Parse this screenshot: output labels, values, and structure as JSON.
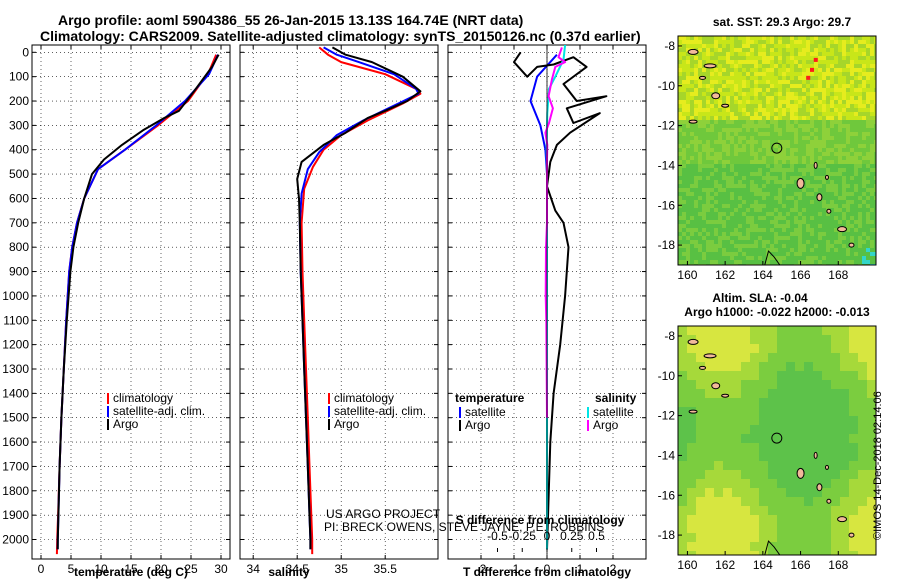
{
  "header": {
    "line1": "Argo profile: aoml 5904386_55 26-Jan-2015 13.13S 164.74E (NRT data)",
    "line2": "Climatology: CARS2009. Satellite-adjusted climatology: synTS_20150126.nc (0.37d earlier)"
  },
  "credits": {
    "line1": "US ARGO PROJECT",
    "line2": "PI: BRECK OWENS, STEVE JAYNE, P.E. ROBBINS"
  },
  "sidebar_note": "©IMOS 14-Dec-2018 02:14:06",
  "colors": {
    "climatology": "#ff0000",
    "satellite": "#0000ff",
    "argo": "#000000",
    "sat_salinity": "#00e5e5",
    "argo_salinity": "#ff00ff"
  },
  "chart_data": [
    {
      "id": "temperature",
      "type": "line",
      "xlabel": "temperature (deg C)",
      "ylabel": "",
      "xlim": [
        -1.5,
        31.5
      ],
      "ylim": [
        2080,
        -30
      ],
      "xticks": [
        0,
        5,
        10,
        15,
        20,
        25,
        30
      ],
      "yticks": [
        0,
        100,
        200,
        300,
        400,
        500,
        600,
        700,
        800,
        900,
        1000,
        1100,
        1200,
        1300,
        1400,
        1500,
        1600,
        1700,
        1800,
        1900,
        2000
      ],
      "legend": [
        "climatology",
        "satellite-adj. clim.",
        "Argo"
      ],
      "series": [
        {
          "name": "climatology",
          "color": "#ff0000",
          "points": [
            [
              29.2,
              10
            ],
            [
              28,
              80
            ],
            [
              24.5,
              200
            ],
            [
              19.5,
              300
            ],
            [
              14,
              400
            ],
            [
              9.5,
              480
            ],
            [
              7.2,
              600
            ],
            [
              6,
              700
            ],
            [
              5.2,
              800
            ],
            [
              4.7,
              900
            ],
            [
              4.2,
              1100
            ],
            [
              3.8,
              1300
            ],
            [
              3.4,
              1500
            ],
            [
              3.1,
              1700
            ],
            [
              2.85,
              1900
            ],
            [
              2.7,
              2000
            ],
            [
              2.65,
              2060
            ]
          ]
        },
        {
          "name": "satellite-adj. clim.",
          "color": "#0000ff",
          "points": [
            [
              29.5,
              10
            ],
            [
              28,
              90
            ],
            [
              24,
              200
            ],
            [
              19.2,
              300
            ],
            [
              14,
              400
            ],
            [
              9.5,
              480
            ],
            [
              7.2,
              600
            ],
            [
              6,
              700
            ],
            [
              5.2,
              800
            ],
            [
              4.7,
              900
            ],
            [
              4.2,
              1100
            ],
            [
              3.8,
              1300
            ],
            [
              3.4,
              1500
            ],
            [
              3.1,
              1700
            ],
            [
              2.9,
              1900
            ],
            [
              2.8,
              2000
            ],
            [
              2.78,
              2040
            ]
          ]
        },
        {
          "name": "Argo",
          "color": "#000000",
          "points": [
            [
              29.6,
              10
            ],
            [
              28.5,
              60
            ],
            [
              25.5,
              160
            ],
            [
              23,
              240
            ],
            [
              20.5,
              270
            ],
            [
              17,
              320
            ],
            [
              13.5,
              380
            ],
            [
              10.5,
              440
            ],
            [
              8.5,
              500
            ],
            [
              7.2,
              600
            ],
            [
              6.2,
              700
            ],
            [
              5.4,
              800
            ],
            [
              4.9,
              900
            ],
            [
              4.3,
              1100
            ],
            [
              3.8,
              1300
            ],
            [
              3.4,
              1500
            ],
            [
              3.1,
              1700
            ],
            [
              2.9,
              1900
            ],
            [
              2.8,
              2000
            ],
            [
              2.78,
              2040
            ]
          ]
        }
      ]
    },
    {
      "id": "salinity",
      "type": "line",
      "xlabel": "salinity",
      "xlim": [
        33.85,
        36.1
      ],
      "ylim": [
        2080,
        -30
      ],
      "xticks": [
        34,
        34.5,
        35,
        35.5
      ],
      "xticklabels": [
        "34",
        "34.5",
        "35",
        "35.5"
      ],
      "legend": [
        "climatology",
        "satellite-adj. clim.",
        "Argo"
      ],
      "series": [
        {
          "name": "climatology",
          "color": "#ff0000",
          "points": [
            [
              34.75,
              -20
            ],
            [
              34.85,
              10
            ],
            [
              35.0,
              40
            ],
            [
              35.5,
              90
            ],
            [
              35.85,
              150
            ],
            [
              35.9,
              170
            ],
            [
              35.7,
              210
            ],
            [
              35.3,
              280
            ],
            [
              35.0,
              340
            ],
            [
              34.8,
              400
            ],
            [
              34.68,
              470
            ],
            [
              34.58,
              560
            ],
            [
              34.55,
              700
            ],
            [
              34.56,
              900
            ],
            [
              34.58,
              1100
            ],
            [
              34.6,
              1300
            ],
            [
              34.62,
              1500
            ],
            [
              34.64,
              1700
            ],
            [
              34.66,
              1900
            ],
            [
              34.67,
              2000
            ],
            [
              34.67,
              2060
            ]
          ]
        },
        {
          "name": "satellite-adj. clim.",
          "color": "#0000ff",
          "points": [
            [
              34.8,
              -20
            ],
            [
              34.95,
              10
            ],
            [
              35.2,
              40
            ],
            [
              35.6,
              90
            ],
            [
              35.85,
              150
            ],
            [
              35.88,
              170
            ],
            [
              35.65,
              210
            ],
            [
              35.25,
              280
            ],
            [
              34.95,
              340
            ],
            [
              34.75,
              410
            ],
            [
              34.62,
              480
            ],
            [
              34.55,
              580
            ],
            [
              34.53,
              700
            ],
            [
              34.54,
              900
            ],
            [
              34.56,
              1100
            ],
            [
              34.58,
              1300
            ],
            [
              34.6,
              1500
            ],
            [
              34.62,
              1700
            ],
            [
              34.64,
              1900
            ],
            [
              34.65,
              2000
            ],
            [
              34.65,
              2040
            ]
          ]
        },
        {
          "name": "Argo",
          "color": "#000000",
          "points": [
            [
              34.9,
              -20
            ],
            [
              35.05,
              10
            ],
            [
              35.35,
              40
            ],
            [
              35.7,
              100
            ],
            [
              35.9,
              160
            ],
            [
              35.75,
              200
            ],
            [
              35.5,
              240
            ],
            [
              35.3,
              270
            ],
            [
              35.05,
              330
            ],
            [
              34.8,
              380
            ],
            [
              34.55,
              450
            ],
            [
              34.5,
              520
            ],
            [
              34.52,
              600
            ],
            [
              34.53,
              700
            ],
            [
              34.54,
              900
            ],
            [
              34.56,
              1100
            ],
            [
              34.58,
              1300
            ],
            [
              34.6,
              1500
            ],
            [
              34.62,
              1700
            ],
            [
              34.64,
              1900
            ],
            [
              34.65,
              2000
            ],
            [
              34.65,
              2040
            ]
          ]
        }
      ]
    },
    {
      "id": "difference",
      "type": "line",
      "xlabel": "T difference from climatology",
      "xlabel_top": "S difference from climatology",
      "xlim": [
        -3,
        3
      ],
      "ylim": [
        2080,
        -30
      ],
      "xticks": [
        -2,
        -1,
        0,
        1,
        2
      ],
      "xticklabels": [
        "-2",
        "-1",
        "0",
        "1",
        "2"
      ],
      "sticks": [
        -0.5,
        -0.25,
        0,
        0.25,
        0.5
      ],
      "sticklabels": [
        "-0.5",
        "-0.25",
        "0",
        "0.25",
        "0.5"
      ],
      "legend_temperature": {
        "title": "temperature",
        "items": [
          "satellite",
          "Argo"
        ]
      },
      "legend_salinity": {
        "title": "salinity",
        "items": [
          "satellite",
          "Argo"
        ]
      },
      "series": [
        {
          "name": "T satellite",
          "color": "#0000ff",
          "points": [
            [
              0.3,
              10
            ],
            [
              -0.3,
              100
            ],
            [
              -0.5,
              200
            ],
            [
              -0.2,
              300
            ],
            [
              -0.05,
              400
            ],
            [
              0,
              500
            ],
            [
              0,
              800
            ],
            [
              0,
              2040
            ]
          ]
        },
        {
          "name": "T Argo",
          "color": "#000000",
          "points": [
            [
              -0.8,
              0
            ],
            [
              -1.0,
              40
            ],
            [
              -0.6,
              100
            ],
            [
              -0.3,
              60
            ],
            [
              0.2,
              50
            ],
            [
              0.8,
              20
            ],
            [
              1.2,
              60
            ],
            [
              0.5,
              130
            ],
            [
              0.9,
              200
            ],
            [
              1.8,
              180
            ],
            [
              0.6,
              230
            ],
            [
              0.8,
              290
            ],
            [
              1.6,
              250
            ],
            [
              0.7,
              330
            ],
            [
              0.3,
              380
            ],
            [
              0.1,
              450
            ],
            [
              0.0,
              550
            ],
            [
              0.25,
              650
            ],
            [
              0.5,
              700
            ],
            [
              0.65,
              800
            ],
            [
              0.6,
              900
            ],
            [
              0.55,
              1000
            ],
            [
              0.4,
              1200
            ],
            [
              0.2,
              1400
            ],
            [
              0.1,
              1600
            ],
            [
              0,
              2040
            ]
          ]
        },
        {
          "name": "S satellite",
          "color": "#00e5e5",
          "points": [
            [
              0.55,
              -30
            ],
            [
              0.5,
              30
            ],
            [
              0.25,
              100
            ],
            [
              0.06,
              150
            ],
            [
              0.01,
              250
            ],
            [
              0,
              300
            ],
            [
              -0.01,
              400
            ],
            [
              0,
              500
            ],
            [
              0,
              2040
            ]
          ]
        },
        {
          "name": "S Argo",
          "color": "#ff00ff",
          "points": [
            [
              0.45,
              -20
            ],
            [
              0.35,
              20
            ],
            [
              0.55,
              40
            ],
            [
              0.25,
              60
            ],
            [
              0.15,
              110
            ],
            [
              0.05,
              180
            ],
            [
              0.18,
              230
            ],
            [
              0.06,
              290
            ],
            [
              -0.05,
              330
            ],
            [
              0.01,
              380
            ],
            [
              0,
              440
            ],
            [
              0,
              700
            ],
            [
              -0.03,
              800
            ],
            [
              -0.04,
              1000
            ],
            [
              -0.02,
              1100
            ],
            [
              0,
              1500
            ]
          ]
        }
      ]
    },
    {
      "id": "sst-map",
      "type": "heatmap",
      "title": "sat. SST: 29.3 Argo: 29.7",
      "xlim": [
        159.5,
        170
      ],
      "ylim": [
        -19,
        -7.5
      ],
      "xticks": [
        160,
        162,
        164,
        166,
        168
      ],
      "yticks": [
        -8,
        -10,
        -12,
        -14,
        -16,
        -18
      ],
      "float_position": [
        164.74,
        -13.13
      ]
    },
    {
      "id": "sla-map",
      "type": "heatmap",
      "title": "Altim. SLA: -0.04",
      "subtitle": "Argo h1000: -0.022 h2000: -0.013",
      "xlim": [
        159.5,
        170
      ],
      "ylim": [
        -19,
        -7.5
      ],
      "xticks": [
        160,
        162,
        164,
        166,
        168
      ],
      "yticks": [
        -8,
        -10,
        -12,
        -14,
        -16,
        -18
      ],
      "float_position": [
        164.74,
        -13.13
      ]
    }
  ]
}
